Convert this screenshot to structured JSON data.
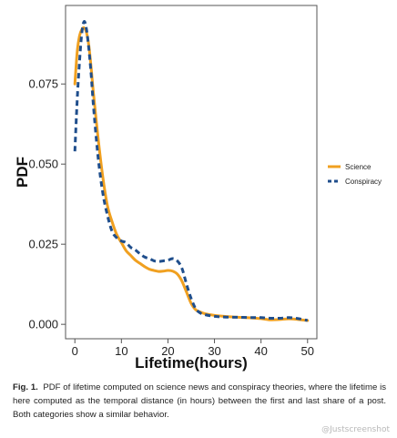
{
  "chart_data": {
    "type": "line",
    "xlabel": "Lifetime(hours)",
    "ylabel": "PDF",
    "xlim": [
      -2,
      52
    ],
    "ylim": [
      -0.0045,
      0.0995
    ],
    "x_ticks": [
      "0",
      "10",
      "20",
      "30",
      "40",
      "50"
    ],
    "y_ticks": [
      "0.000",
      "0.025",
      "0.050",
      "0.075"
    ],
    "grid": false,
    "legend_position": "right",
    "series": [
      {
        "name": "Science",
        "color": "#F0A020",
        "style": "solid",
        "points": [
          [
            0,
            0.075
          ],
          [
            0.5,
            0.085
          ],
          [
            1,
            0.09
          ],
          [
            1.5,
            0.092
          ],
          [
            2,
            0.0925
          ],
          [
            2.5,
            0.091
          ],
          [
            3,
            0.087
          ],
          [
            3.5,
            0.08
          ],
          [
            4,
            0.072
          ],
          [
            5,
            0.058
          ],
          [
            6,
            0.046
          ],
          [
            7,
            0.037
          ],
          [
            8,
            0.032
          ],
          [
            9,
            0.028
          ],
          [
            10,
            0.0255
          ],
          [
            11,
            0.023
          ],
          [
            12,
            0.0215
          ],
          [
            13,
            0.02
          ],
          [
            14,
            0.019
          ],
          [
            15,
            0.018
          ],
          [
            16,
            0.0172
          ],
          [
            17,
            0.0168
          ],
          [
            18,
            0.0165
          ],
          [
            19,
            0.0166
          ],
          [
            20,
            0.0168
          ],
          [
            21,
            0.0166
          ],
          [
            22,
            0.0157
          ],
          [
            23,
            0.0135
          ],
          [
            24,
            0.01
          ],
          [
            25,
            0.0065
          ],
          [
            26,
            0.0045
          ],
          [
            27,
            0.0038
          ],
          [
            28,
            0.0033
          ],
          [
            30,
            0.0028
          ],
          [
            32,
            0.0025
          ],
          [
            35,
            0.0022
          ],
          [
            38,
            0.002
          ],
          [
            40,
            0.0018
          ],
          [
            42,
            0.0014
          ],
          [
            44,
            0.0015
          ],
          [
            46,
            0.0017
          ],
          [
            48,
            0.0015
          ],
          [
            50,
            0.0012
          ]
        ]
      },
      {
        "name": "Conspiracy",
        "color": "#1F4E8C",
        "style": "dashed",
        "points": [
          [
            0,
            0.054
          ],
          [
            0.5,
            0.07
          ],
          [
            1,
            0.082
          ],
          [
            1.5,
            0.091
          ],
          [
            2,
            0.0945
          ],
          [
            2.5,
            0.092
          ],
          [
            3,
            0.086
          ],
          [
            3.5,
            0.078
          ],
          [
            4,
            0.068
          ],
          [
            5,
            0.052
          ],
          [
            6,
            0.041
          ],
          [
            7,
            0.034
          ],
          [
            8,
            0.029
          ],
          [
            9,
            0.027
          ],
          [
            10,
            0.026
          ],
          [
            11,
            0.0255
          ],
          [
            12,
            0.024
          ],
          [
            13,
            0.0232
          ],
          [
            14,
            0.022
          ],
          [
            15,
            0.021
          ],
          [
            16,
            0.0205
          ],
          [
            17,
            0.0198
          ],
          [
            18,
            0.0196
          ],
          [
            19,
            0.0198
          ],
          [
            20,
            0.02
          ],
          [
            21,
            0.0205
          ],
          [
            22,
            0.0198
          ],
          [
            23,
            0.0175
          ],
          [
            24,
            0.0125
          ],
          [
            25,
            0.008
          ],
          [
            26,
            0.0048
          ],
          [
            27,
            0.0035
          ],
          [
            28,
            0.003
          ],
          [
            30,
            0.0025
          ],
          [
            32,
            0.0023
          ],
          [
            35,
            0.0022
          ],
          [
            38,
            0.0021
          ],
          [
            40,
            0.0021
          ],
          [
            42,
            0.0019
          ],
          [
            44,
            0.0019
          ],
          [
            46,
            0.0021
          ],
          [
            48,
            0.0018
          ],
          [
            50,
            0.0012
          ]
        ]
      }
    ]
  },
  "caption": {
    "label": "Fig. 1.",
    "text": "PDF of lifetime computed on science news and conspiracy theories, where the lifetime is here computed as the temporal distance (in hours) between the first and last share of a post. Both categories show a similar behavior."
  },
  "watermark": "@Justscreenshot"
}
